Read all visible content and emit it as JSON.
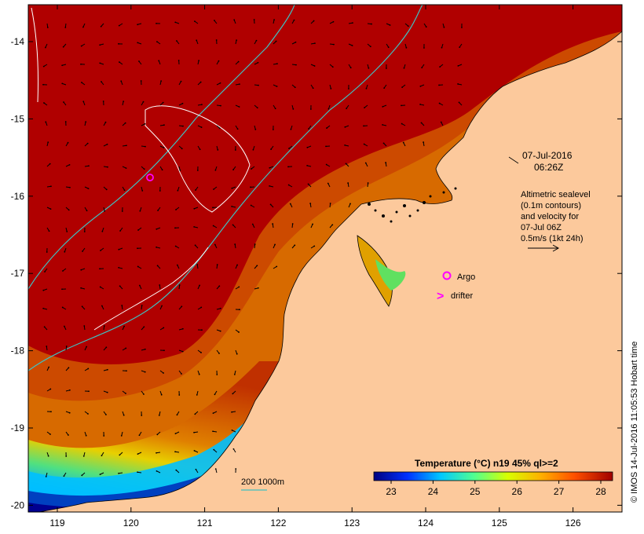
{
  "map": {
    "lon_ticks": [
      "119",
      "120",
      "121",
      "122",
      "123",
      "124",
      "125",
      "126"
    ],
    "lat_ticks": [
      "-14",
      "-15",
      "-16",
      "-17",
      "-18",
      "-19",
      "-20"
    ],
    "date_line1": "07-Jul-2016",
    "date_line2": "06:26Z",
    "altimetry_lines": [
      "Altimetric sealevel",
      "(0.1m contours)",
      "and velocity for",
      "07-Jul 06Z",
      "0.5m/s (1kt 24h)"
    ],
    "legend": {
      "argo_label": "Argo",
      "drifter_symbol": ">",
      "drifter_label": "drifter",
      "argo_color": "#ff00ff",
      "drifter_color": "#ff00ff"
    },
    "depth_contour_label": "200  1000m",
    "depth_contour_color": "#40c0c0",
    "land_color": "#fcc99c",
    "colorbar": {
      "title": "Temperature (°C) n19 45% ql>=2",
      "ticks": [
        "23",
        "24",
        "25",
        "26",
        "27",
        "28"
      ],
      "colors": [
        "#00007f",
        "#0050ff",
        "#00c8ff",
        "#60ff90",
        "#e0ff00",
        "#ffb000",
        "#ff5000",
        "#b00000"
      ]
    },
    "credit": "© IMOS 14-Jul-2016 11:05:53 Hobart time"
  }
}
